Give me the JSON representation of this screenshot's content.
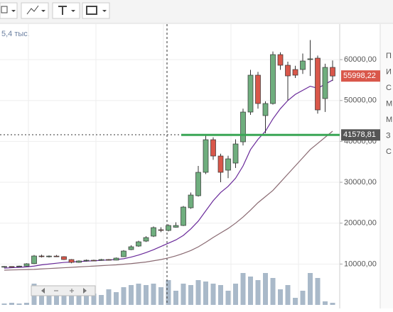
{
  "toolbar_corner_label": "5,4 тыс.",
  "side_panel_labels": [
    "П",
    "И",
    "С",
    "М",
    "М",
    "З",
    "С"
  ],
  "chart_data": {
    "type": "candlestick",
    "ylim": [
      0,
      68000
    ],
    "yticks": [
      {
        "value": 10000,
        "label": "10000,00"
      },
      {
        "value": 20000,
        "label": "20000,00"
      },
      {
        "value": 30000,
        "label": "30000,00"
      },
      {
        "value": 40000,
        "label": "40000,00"
      },
      {
        "value": 50000,
        "label": "50000,00"
      },
      {
        "value": 60000,
        "label": "60000,00"
      }
    ],
    "grid": true,
    "up_color": "#6fae7e",
    "down_color": "#d9574a",
    "open": [
      9300,
      9400,
      9350,
      9500,
      10100,
      11969,
      11800,
      11950,
      11800,
      11101,
      10408,
      10755,
      10928,
      10900,
      11100,
      10950,
      11795,
      13530,
      14397,
      15611,
      16826,
      18387,
      18213,
      19000,
      19428,
      23764,
      26713,
      32437,
      40416,
      36427,
      32958,
      34692,
      39896,
      47181,
      56201,
      46314,
      49263,
      61232,
      58630,
      57588,
      57588,
      60017,
      60364,
      50477,
      58110
    ],
    "high": [
      9500,
      9450,
      9600,
      10200,
      12200,
      12300,
      12100,
      12200,
      11900,
      11200,
      10900,
      11100,
      11050,
      11250,
      11200,
      11600,
      13400,
      14600,
      15700,
      16800,
      19200,
      19000,
      19700,
      20200,
      24200,
      27500,
      34000,
      41500,
      41000,
      37000,
      36500,
      40500,
      48000,
      57500,
      57000,
      49800,
      62000,
      61800,
      59500,
      58500,
      61500,
      64800,
      61000,
      59000,
      59800
    ],
    "low": [
      9100,
      9250,
      9300,
      9400,
      10000,
      11600,
      11600,
      11700,
      11000,
      10200,
      10300,
      10600,
      10800,
      10800,
      10850,
      10900,
      11700,
      13400,
      14200,
      15400,
      16600,
      17800,
      18000,
      18900,
      19300,
      23500,
      26500,
      32000,
      35500,
      30000,
      31000,
      33500,
      39000,
      46500,
      48000,
      42000,
      49000,
      57500,
      50000,
      55500,
      56500,
      56000,
      46800,
      47200,
      54800
    ],
    "close": [
      9400,
      9350,
      9500,
      10061,
      11969,
      11800,
      11950,
      11800,
      11101,
      10408,
      10755,
      10928,
      10900,
      11100,
      10950,
      11448,
      13183,
      14224,
      15438,
      16479,
      18907,
      18300,
      19428,
      19428,
      23937,
      26886,
      32437,
      40416,
      36427,
      32437,
      35733,
      39376,
      47181,
      56201,
      49263,
      49263,
      61232,
      58630,
      56027,
      56201,
      59670,
      60200,
      47702,
      58110,
      55998.22
    ],
    "series": [
      {
        "color": "#6a2a9a",
        "values": [
          9000,
          9100,
          9200,
          9300,
          9500,
          9800,
          10000,
          10200,
          10400,
          10500,
          10600,
          10700,
          10800,
          10900,
          11000,
          11100,
          11300,
          11700,
          12200,
          12800,
          13500,
          14300,
          15100,
          15900,
          17000,
          18600,
          20500,
          23000,
          25500,
          27500,
          29000,
          31000,
          34000,
          38000,
          40500,
          42500,
          45500,
          48000,
          50000,
          51500,
          52500,
          53500,
          53000,
          54000,
          55000
        ]
      },
      {
        "color": "#8a6a72",
        "values": [
          8500,
          8550,
          8600,
          8650,
          8700,
          8800,
          8900,
          9000,
          9100,
          9200,
          9300,
          9400,
          9500,
          9600,
          9700,
          9800,
          9950,
          10100,
          10300,
          10500,
          10800,
          11100,
          11500,
          12000,
          12600,
          13300,
          14200,
          15300,
          16500,
          17600,
          18700,
          20000,
          21500,
          23200,
          25000,
          26500,
          28000,
          30000,
          32000,
          34000,
          36000,
          38000,
          39500,
          41000,
          42500
        ]
      }
    ],
    "volume": [
      2,
      3,
      2,
      3,
      30,
      20,
      20,
      18,
      15,
      16,
      18,
      15,
      16,
      14,
      22,
      18,
      25,
      28,
      30,
      28,
      30,
      25,
      35,
      20,
      30,
      28,
      35,
      33,
      30,
      28,
      20,
      30,
      45,
      40,
      35,
      45,
      38,
      22,
      28,
      10,
      20,
      45,
      38,
      5,
      3
    ],
    "volume_lim": [
      0,
      50
    ],
    "volume_color": "#a9b9c9",
    "price_tags": [
      {
        "value": 55998.22,
        "label": "55998,22",
        "color": "#d9574a"
      },
      {
        "value": 41578.81,
        "label": "41578,81",
        "color": "#555555"
      }
    ],
    "level_line_color": "#3aa655"
  }
}
